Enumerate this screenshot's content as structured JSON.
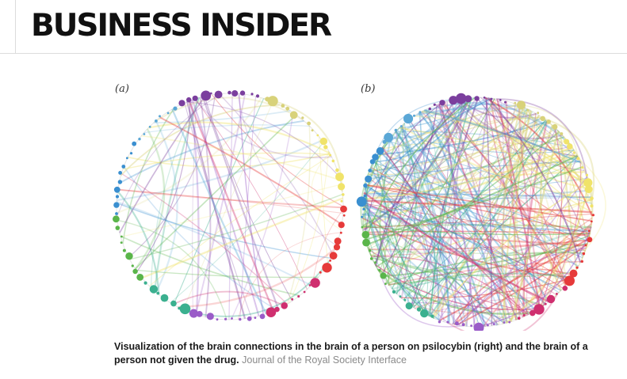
{
  "header": {
    "logo_text": "BUSINESS INSIDER"
  },
  "figure": {
    "panel_a_label": "(a)",
    "panel_b_label": "(b)",
    "node_colors": [
      "#7b3f9e",
      "#5aa7d6",
      "#3a8fd0",
      "#5ab54a",
      "#7ac36a",
      "#3bb08f",
      "#e63a3a",
      "#cf2f6f",
      "#f0e36a",
      "#9a5cc8"
    ]
  },
  "caption": {
    "text": "Visualization of the brain connections in the brain of a person on psilocybin (right) and the brain of a person not given the drug.",
    "source": "Journal of the Royal Society Interface"
  }
}
